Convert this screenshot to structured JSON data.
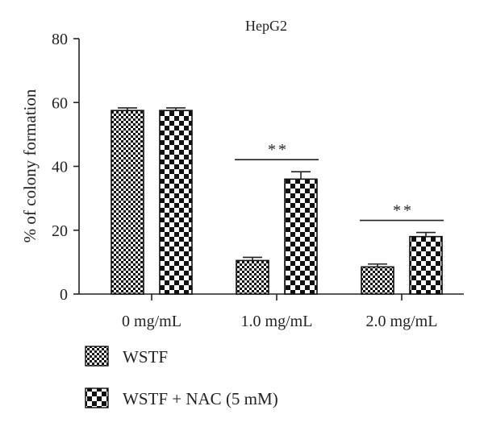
{
  "chart_data": {
    "type": "bar",
    "title": "HepG2",
    "xlabel": "",
    "ylabel": "% of colony formation",
    "ylim": [
      0,
      80
    ],
    "yticks": [
      0,
      20,
      40,
      60,
      80
    ],
    "categories": [
      "0 mg/mL",
      "1.0 mg/mL",
      "2.0 mg/mL"
    ],
    "series": [
      {
        "name": "WSTF",
        "values": [
          57.5,
          10.5,
          8.5
        ],
        "errors": [
          0.8,
          1.0,
          0.9
        ],
        "pattern": "fine-checker"
      },
      {
        "name": "WSTF + NAC (5 mM)",
        "values": [
          57.5,
          36.0,
          18.0
        ],
        "errors": [
          0.8,
          2.3,
          1.3
        ],
        "pattern": "coarse-checker"
      }
    ],
    "annotations": [
      {
        "category": "1.0 mg/mL",
        "text": "**"
      },
      {
        "category": "2.0 mg/mL",
        "text": "**"
      }
    ],
    "legend_placement": "bottom-left",
    "grid": false,
    "colors": {
      "bar_fill": "#111111",
      "bar_background": "#ffffff",
      "axis": "#222222"
    }
  }
}
